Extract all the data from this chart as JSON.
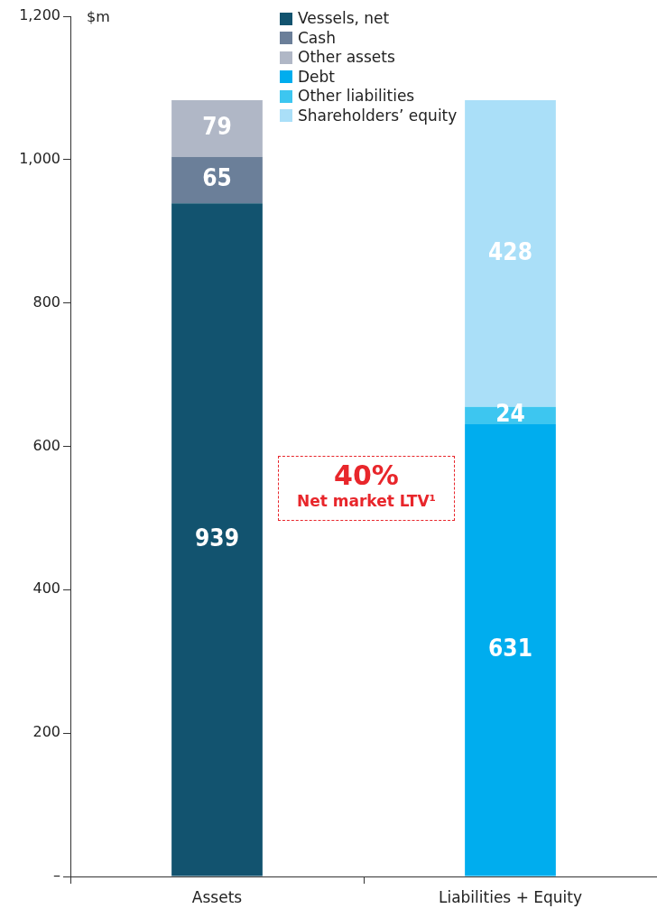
{
  "chart_data": {
    "type": "bar",
    "stacked": true,
    "ylabel": "$m",
    "categories": [
      "Assets",
      "Liabilities + Equity"
    ],
    "series": [
      {
        "name": "Vessels, net",
        "color": "#12536f",
        "values": [
          939,
          null
        ]
      },
      {
        "name": "Cash",
        "color": "#6b7f99",
        "values": [
          65,
          null
        ]
      },
      {
        "name": "Other assets",
        "color": "#b0b7c6",
        "values": [
          79,
          null
        ]
      },
      {
        "name": "Debt",
        "color": "#00adee",
        "values": [
          null,
          631
        ]
      },
      {
        "name": "Other liabilities",
        "color": "#3dc6f0",
        "values": [
          null,
          24
        ]
      },
      {
        "name": "Shareholders’ equity",
        "color": "#aadff8",
        "values": [
          null,
          428
        ]
      }
    ],
    "ylim": [
      0,
      1200
    ],
    "yticks": [
      {
        "value": 0,
        "label": "–"
      },
      {
        "value": 200,
        "label": "200"
      },
      {
        "value": 400,
        "label": "400"
      },
      {
        "value": 600,
        "label": "600"
      },
      {
        "value": 800,
        "label": "800"
      },
      {
        "value": 1000,
        "label": "1,000"
      },
      {
        "value": 1200,
        "label": "1,200"
      }
    ],
    "grid": false,
    "legend": "top",
    "data_labels": true,
    "annotations": [
      "40%",
      "Net market LTV¹"
    ]
  }
}
